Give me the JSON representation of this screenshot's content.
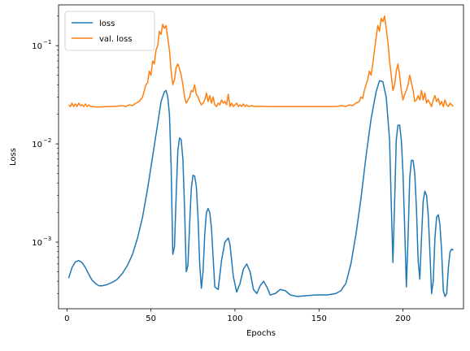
{
  "chart_data": {
    "type": "line",
    "title": "",
    "xlabel": "Epochs",
    "ylabel": "Loss",
    "yscale": "log",
    "xlim": [
      -5,
      236
    ],
    "ylim": [
      0.00021,
      0.26
    ],
    "xticks": [
      0,
      50,
      100,
      150,
      200
    ],
    "yticks": [
      {
        "value": 0.001,
        "base": "10",
        "exp": "−3"
      },
      {
        "value": 0.01,
        "base": "10",
        "exp": "−2"
      },
      {
        "value": 0.1,
        "base": "10",
        "exp": "−1"
      }
    ],
    "legend_position": "top-left",
    "series": [
      {
        "name": "loss",
        "color": "#1f77b4",
        "points": [
          [
            1,
            0.00043
          ],
          [
            3,
            0.00055
          ],
          [
            5,
            0.00063
          ],
          [
            7,
            0.00065
          ],
          [
            9,
            0.00062
          ],
          [
            11,
            0.00055
          ],
          [
            13,
            0.00047
          ],
          [
            15,
            0.00041
          ],
          [
            17,
            0.00038
          ],
          [
            19,
            0.00036
          ],
          [
            21,
            0.00036
          ],
          [
            24,
            0.00037
          ],
          [
            27,
            0.00039
          ],
          [
            30,
            0.00042
          ],
          [
            33,
            0.00048
          ],
          [
            36,
            0.00058
          ],
          [
            39,
            0.00075
          ],
          [
            42,
            0.0011
          ],
          [
            45,
            0.0018
          ],
          [
            48,
            0.0035
          ],
          [
            51,
            0.0075
          ],
          [
            54,
            0.016
          ],
          [
            56,
            0.027
          ],
          [
            58,
            0.034
          ],
          [
            59,
            0.035
          ],
          [
            60,
            0.03
          ],
          [
            61,
            0.02
          ],
          [
            62,
            0.006
          ],
          [
            63,
            0.00075
          ],
          [
            64,
            0.0009
          ],
          [
            65,
            0.003
          ],
          [
            66,
            0.0085
          ],
          [
            67,
            0.0115
          ],
          [
            68,
            0.011
          ],
          [
            69,
            0.007
          ],
          [
            70,
            0.0022
          ],
          [
            71,
            0.0005
          ],
          [
            72,
            0.00058
          ],
          [
            73,
            0.0015
          ],
          [
            74,
            0.0035
          ],
          [
            75,
            0.0048
          ],
          [
            76,
            0.0047
          ],
          [
            77,
            0.0037
          ],
          [
            78,
            0.0018
          ],
          [
            79,
            0.0006
          ],
          [
            80,
            0.00034
          ],
          [
            81,
            0.0005
          ],
          [
            82,
            0.0012
          ],
          [
            83,
            0.002
          ],
          [
            84,
            0.0022
          ],
          [
            85,
            0.002
          ],
          [
            86,
            0.0014
          ],
          [
            87,
            0.0007
          ],
          [
            88,
            0.00035
          ],
          [
            90,
            0.00033
          ],
          [
            92,
            0.00065
          ],
          [
            94,
            0.001
          ],
          [
            96,
            0.0011
          ],
          [
            97,
            0.00095
          ],
          [
            99,
            0.00045
          ],
          [
            101,
            0.00031
          ],
          [
            103,
            0.00038
          ],
          [
            105,
            0.00053
          ],
          [
            107,
            0.0006
          ],
          [
            109,
            0.0005
          ],
          [
            111,
            0.00033
          ],
          [
            113,
            0.0003
          ],
          [
            115,
            0.00036
          ],
          [
            117,
            0.0004
          ],
          [
            119,
            0.00035
          ],
          [
            121,
            0.00029
          ],
          [
            124,
            0.0003
          ],
          [
            127,
            0.00033
          ],
          [
            130,
            0.00032
          ],
          [
            133,
            0.00029
          ],
          [
            137,
            0.00028
          ],
          [
            142,
            0.000285
          ],
          [
            148,
            0.00029
          ],
          [
            155,
            0.00029
          ],
          [
            160,
            0.0003
          ],
          [
            163,
            0.00032
          ],
          [
            166,
            0.00038
          ],
          [
            169,
            0.0006
          ],
          [
            172,
            0.0012
          ],
          [
            175,
            0.0028
          ],
          [
            178,
            0.0075
          ],
          [
            181,
            0.018
          ],
          [
            184,
            0.034
          ],
          [
            186,
            0.044
          ],
          [
            188,
            0.043
          ],
          [
            190,
            0.03
          ],
          [
            192,
            0.011
          ],
          [
            193,
            0.0025
          ],
          [
            194,
            0.00062
          ],
          [
            195,
            0.0025
          ],
          [
            196,
            0.011
          ],
          [
            197,
            0.0155
          ],
          [
            198,
            0.0155
          ],
          [
            199,
            0.011
          ],
          [
            200,
            0.005
          ],
          [
            201,
            0.0014
          ],
          [
            202,
            0.00035
          ],
          [
            203,
            0.0011
          ],
          [
            204,
            0.0045
          ],
          [
            205,
            0.0068
          ],
          [
            206,
            0.0068
          ],
          [
            207,
            0.005
          ],
          [
            208,
            0.0022
          ],
          [
            209,
            0.00065
          ],
          [
            210,
            0.00042
          ],
          [
            211,
            0.0011
          ],
          [
            212,
            0.0026
          ],
          [
            213,
            0.0033
          ],
          [
            214,
            0.003
          ],
          [
            215,
            0.0019
          ],
          [
            216,
            0.0008
          ],
          [
            217,
            0.0003
          ],
          [
            218,
            0.0004
          ],
          [
            219,
            0.0011
          ],
          [
            220,
            0.0018
          ],
          [
            221,
            0.0019
          ],
          [
            222,
            0.0015
          ],
          [
            223,
            0.0008
          ],
          [
            224,
            0.00032
          ],
          [
            225,
            0.00028
          ],
          [
            226,
            0.0003
          ],
          [
            227,
            0.00055
          ],
          [
            228,
            0.0008
          ],
          [
            229,
            0.00085
          ],
          [
            230,
            0.00083
          ]
        ]
      },
      {
        "name": "val. loss",
        "color": "#ff7f0e",
        "points": [
          [
            1,
            0.025
          ],
          [
            2,
            0.024
          ],
          [
            3,
            0.026
          ],
          [
            4,
            0.024
          ],
          [
            5,
            0.0255
          ],
          [
            6,
            0.024
          ],
          [
            7,
            0.026
          ],
          [
            8,
            0.0245
          ],
          [
            9,
            0.025
          ],
          [
            10,
            0.024
          ],
          [
            11,
            0.0255
          ],
          [
            12,
            0.024
          ],
          [
            13,
            0.025
          ],
          [
            14,
            0.024
          ],
          [
            15,
            0.024
          ],
          [
            17,
            0.0238
          ],
          [
            20,
            0.0238
          ],
          [
            25,
            0.024
          ],
          [
            30,
            0.0242
          ],
          [
            33,
            0.0245
          ],
          [
            35,
            0.024
          ],
          [
            37,
            0.025
          ],
          [
            39,
            0.0245
          ],
          [
            41,
            0.026
          ],
          [
            43,
            0.027
          ],
          [
            45,
            0.03
          ],
          [
            47,
            0.04
          ],
          [
            48,
            0.042
          ],
          [
            49,
            0.055
          ],
          [
            50,
            0.05
          ],
          [
            51,
            0.07
          ],
          [
            52,
            0.065
          ],
          [
            53,
            0.09
          ],
          [
            54,
            0.1
          ],
          [
            55,
            0.14
          ],
          [
            56,
            0.13
          ],
          [
            57,
            0.165
          ],
          [
            58,
            0.15
          ],
          [
            59,
            0.16
          ],
          [
            60,
            0.12
          ],
          [
            61,
            0.09
          ],
          [
            62,
            0.055
          ],
          [
            63,
            0.04
          ],
          [
            64,
            0.045
          ],
          [
            65,
            0.06
          ],
          [
            66,
            0.065
          ],
          [
            67,
            0.058
          ],
          [
            68,
            0.05
          ],
          [
            69,
            0.04
          ],
          [
            70,
            0.03
          ],
          [
            71,
            0.026
          ],
          [
            72,
            0.028
          ],
          [
            73,
            0.03
          ],
          [
            74,
            0.035
          ],
          [
            75,
            0.034
          ],
          [
            76,
            0.04
          ],
          [
            77,
            0.032
          ],
          [
            78,
            0.03
          ],
          [
            79,
            0.027
          ],
          [
            80,
            0.025
          ],
          [
            81,
            0.026
          ],
          [
            82,
            0.028
          ],
          [
            83,
            0.033
          ],
          [
            84,
            0.027
          ],
          [
            85,
            0.031
          ],
          [
            86,
            0.026
          ],
          [
            87,
            0.03
          ],
          [
            88,
            0.025
          ],
          [
            89,
            0.024
          ],
          [
            90,
            0.026
          ],
          [
            91,
            0.025
          ],
          [
            92,
            0.028
          ],
          [
            93,
            0.026
          ],
          [
            94,
            0.027
          ],
          [
            95,
            0.025
          ],
          [
            96,
            0.032
          ],
          [
            97,
            0.024
          ],
          [
            98,
            0.026
          ],
          [
            99,
            0.024
          ],
          [
            100,
            0.025
          ],
          [
            101,
            0.026
          ],
          [
            102,
            0.024
          ],
          [
            103,
            0.025
          ],
          [
            104,
            0.024
          ],
          [
            105,
            0.0255
          ],
          [
            106,
            0.024
          ],
          [
            107,
            0.025
          ],
          [
            108,
            0.024
          ],
          [
            110,
            0.0245
          ],
          [
            112,
            0.024
          ],
          [
            115,
            0.0242
          ],
          [
            120,
            0.024
          ],
          [
            125,
            0.024
          ],
          [
            130,
            0.024
          ],
          [
            135,
            0.024
          ],
          [
            140,
            0.024
          ],
          [
            145,
            0.024
          ],
          [
            150,
            0.024
          ],
          [
            155,
            0.024
          ],
          [
            160,
            0.024
          ],
          [
            164,
            0.0245
          ],
          [
            166,
            0.024
          ],
          [
            168,
            0.025
          ],
          [
            170,
            0.0245
          ],
          [
            172,
            0.026
          ],
          [
            174,
            0.027
          ],
          [
            175,
            0.03
          ],
          [
            176,
            0.029
          ],
          [
            177,
            0.035
          ],
          [
            178,
            0.04
          ],
          [
            179,
            0.045
          ],
          [
            180,
            0.055
          ],
          [
            181,
            0.05
          ],
          [
            182,
            0.065
          ],
          [
            183,
            0.09
          ],
          [
            184,
            0.12
          ],
          [
            185,
            0.16
          ],
          [
            186,
            0.14
          ],
          [
            187,
            0.19
          ],
          [
            188,
            0.175
          ],
          [
            189,
            0.2
          ],
          [
            190,
            0.15
          ],
          [
            191,
            0.11
          ],
          [
            192,
            0.07
          ],
          [
            193,
            0.05
          ],
          [
            194,
            0.035
          ],
          [
            195,
            0.04
          ],
          [
            196,
            0.055
          ],
          [
            197,
            0.065
          ],
          [
            198,
            0.05
          ],
          [
            199,
            0.035
          ],
          [
            200,
            0.028
          ],
          [
            201,
            0.032
          ],
          [
            202,
            0.035
          ],
          [
            203,
            0.04
          ],
          [
            204,
            0.05
          ],
          [
            205,
            0.042
          ],
          [
            206,
            0.035
          ],
          [
            207,
            0.027
          ],
          [
            208,
            0.028
          ],
          [
            209,
            0.031
          ],
          [
            210,
            0.028
          ],
          [
            211,
            0.035
          ],
          [
            212,
            0.028
          ],
          [
            213,
            0.033
          ],
          [
            214,
            0.026
          ],
          [
            215,
            0.028
          ],
          [
            216,
            0.026
          ],
          [
            217,
            0.024
          ],
          [
            218,
            0.028
          ],
          [
            219,
            0.031
          ],
          [
            220,
            0.027
          ],
          [
            221,
            0.029
          ],
          [
            222,
            0.025
          ],
          [
            223,
            0.027
          ],
          [
            224,
            0.024
          ],
          [
            225,
            0.028
          ],
          [
            226,
            0.025
          ],
          [
            227,
            0.024
          ],
          [
            228,
            0.026
          ],
          [
            229,
            0.025
          ],
          [
            230,
            0.024
          ]
        ]
      }
    ]
  }
}
